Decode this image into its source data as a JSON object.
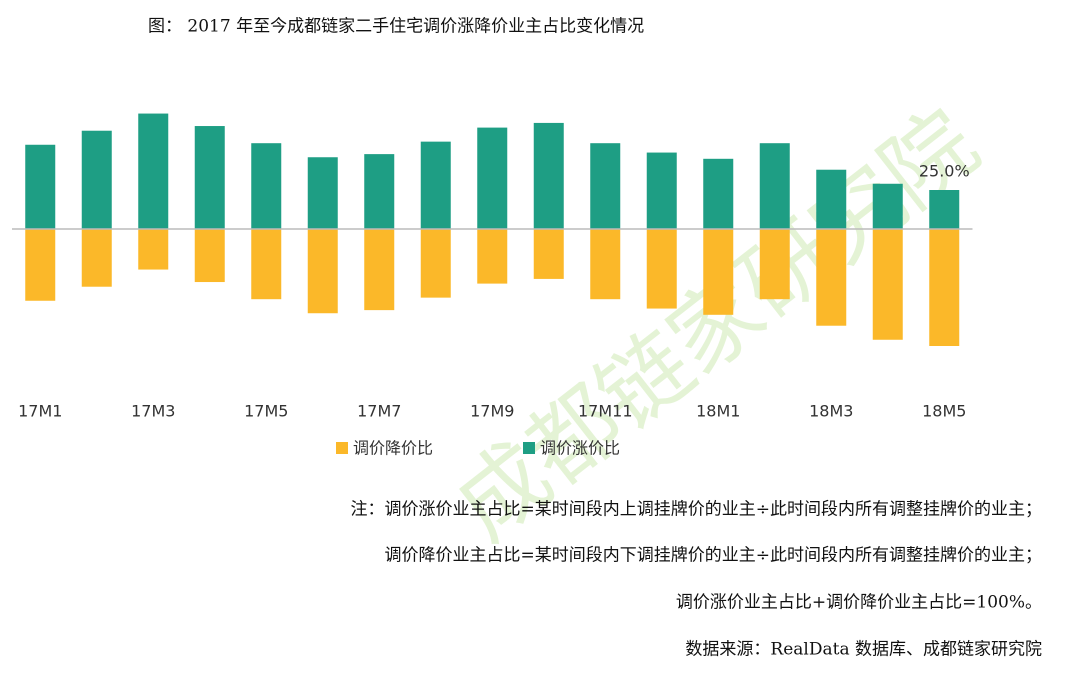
{
  "chart_data": {
    "type": "bar",
    "title": "图：  2017 年至今成都链家二手住宅调价涨降价业主占比变化情况",
    "categories": [
      "17M1",
      null,
      "17M3",
      null,
      "17M5",
      null,
      "17M7",
      null,
      "17M9",
      null,
      "17M11",
      null,
      "18M1",
      null,
      "18M3",
      null,
      "18M5"
    ],
    "series": [
      {
        "name": "调价降价比",
        "color": "#fbb829",
        "values": [
          -46,
          -37,
          -26,
          -34,
          -45,
          -54,
          -52,
          -44,
          -35,
          -32,
          -45,
          -51,
          -55,
          -45,
          -62,
          -71,
          -75
        ]
      },
      {
        "name": "调价涨价比",
        "color": "#1e9e84",
        "values": [
          54,
          63,
          74,
          66,
          55,
          46,
          48,
          56,
          65,
          68,
          55,
          49,
          45,
          55,
          38,
          29,
          25
        ],
        "value_labels": [
          null,
          null,
          null,
          null,
          null,
          null,
          null,
          null,
          null,
          null,
          null,
          null,
          null,
          null,
          null,
          null,
          "25.0%"
        ]
      }
    ],
    "ylim": [
      -100,
      100
    ],
    "legend": "bottom",
    "notes": [
      "注：调价涨价业主占比=某时间段内上调挂牌价的业主÷此时间段内所有调整挂牌价的业主；",
      "调价降价业主占比=某时间段内下调挂牌价的业主÷此时间段内所有调整挂牌价的业主；",
      "调价涨价业主占比+调价降价业主占比=100%。",
      "数据来源：RealData 数据库、成都链家研究院"
    ],
    "watermark": "成都链家研究院"
  }
}
